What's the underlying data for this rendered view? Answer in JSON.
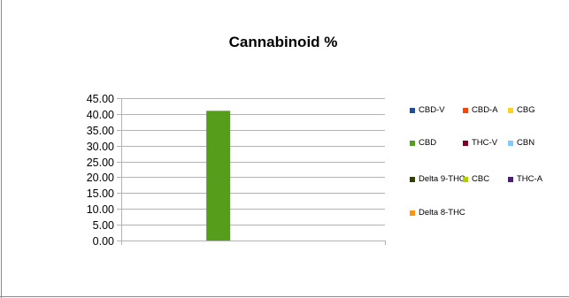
{
  "chart_data": {
    "type": "bar",
    "title": "Cannabinoid %",
    "categories": [
      ""
    ],
    "series": [
      {
        "name": "CBD-V",
        "color": "#1f4e99",
        "values": [
          0
        ]
      },
      {
        "name": "CBD-A",
        "color": "#ff4500",
        "values": [
          0
        ]
      },
      {
        "name": "CBG",
        "color": "#ffd320",
        "values": [
          0
        ]
      },
      {
        "name": "CBD",
        "color": "#579d1c",
        "values": [
          41.0
        ]
      },
      {
        "name": "THC-V",
        "color": "#7e0021",
        "values": [
          0
        ]
      },
      {
        "name": "CBN",
        "color": "#83caff",
        "values": [
          0
        ]
      },
      {
        "name": "Delta 9-THC",
        "color": "#314004",
        "values": [
          0
        ]
      },
      {
        "name": "CBC",
        "color": "#aecf00",
        "values": [
          0
        ]
      },
      {
        "name": "THC-A",
        "color": "#4b1f6f",
        "values": [
          0
        ]
      },
      {
        "name": "Delta 8-THC",
        "color": "#ff950e",
        "values": [
          0
        ]
      }
    ],
    "ylim": [
      0,
      45
    ],
    "y_ticks": [
      "0.00",
      "5.00",
      "10.00",
      "15.00",
      "20.00",
      "25.00",
      "30.00",
      "35.00",
      "40.00",
      "45.00"
    ],
    "xlabel": "",
    "ylabel": "",
    "grid": true,
    "legend_position": "right"
  }
}
